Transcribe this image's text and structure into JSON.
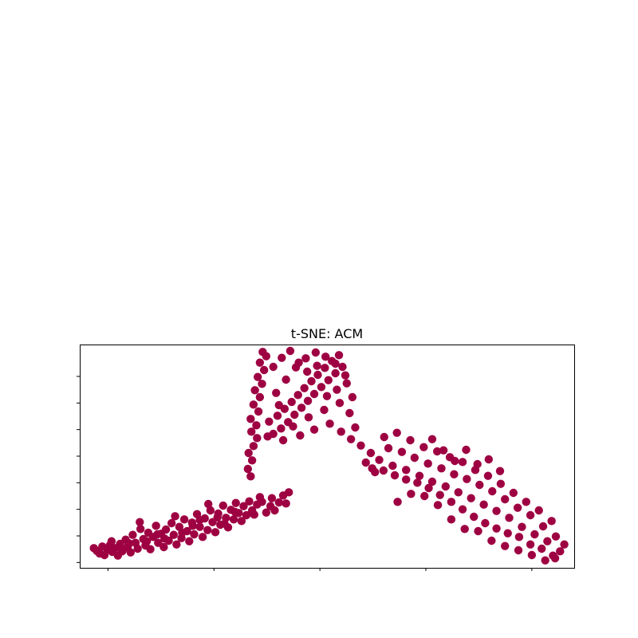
{
  "chart_data": {
    "type": "scatter",
    "title": "t-SNE: ACM",
    "xlabel": "",
    "ylabel": "",
    "xlim": [
      -34,
      36
    ],
    "ylim": [
      -26,
      16
    ],
    "x_ticks": [
      -30,
      -15,
      0,
      15,
      30
    ],
    "y_ticks": [
      -25,
      -20,
      -15,
      -10,
      -5,
      0,
      5,
      10
    ],
    "tick_labels_visible": false,
    "grid": false,
    "marker_color": "#9e0142",
    "series": [
      {
        "values": [
          [
            -32.0,
            -22.3
          ],
          [
            -31.6,
            -22.8
          ],
          [
            -31.2,
            -23.3
          ],
          [
            -30.8,
            -22.0
          ],
          [
            -30.5,
            -23.6
          ],
          [
            -30.1,
            -22.6
          ],
          [
            -29.7,
            -21.7
          ],
          [
            -29.4,
            -23.0
          ],
          [
            -29.0,
            -22.3
          ],
          [
            -28.6,
            -23.7
          ],
          [
            -28.3,
            -21.5
          ],
          [
            -27.9,
            -22.6
          ],
          [
            -27.5,
            -20.7
          ],
          [
            -27.2,
            -22.0
          ],
          [
            -26.8,
            -23.1
          ],
          [
            -26.5,
            -19.8
          ],
          [
            -26.1,
            -21.3
          ],
          [
            -25.8,
            -22.4
          ],
          [
            -25.4,
            -18.7
          ],
          [
            -25.0,
            -20.6
          ],
          [
            -24.7,
            -21.8
          ],
          [
            -24.3,
            -19.4
          ],
          [
            -24.0,
            -22.5
          ],
          [
            -23.6,
            -20.2
          ],
          [
            -23.2,
            -18.1
          ],
          [
            -22.9,
            -21.3
          ],
          [
            -22.5,
            -19.6
          ],
          [
            -22.1,
            -22.1
          ],
          [
            -21.8,
            -18.8
          ],
          [
            -21.4,
            -20.9
          ],
          [
            -21.0,
            -17.6
          ],
          [
            -20.7,
            -19.8
          ],
          [
            -20.3,
            -21.6
          ],
          [
            -19.9,
            -18.3
          ],
          [
            -19.6,
            -20.4
          ],
          [
            -19.2,
            -16.9
          ],
          [
            -18.8,
            -19.1
          ],
          [
            -18.5,
            -21.0
          ],
          [
            -18.1,
            -17.5
          ],
          [
            -17.8,
            -19.7
          ],
          [
            -17.4,
            -15.9
          ],
          [
            -17.0,
            -18.3
          ],
          [
            -16.6,
            -20.2
          ],
          [
            -16.3,
            -16.7
          ],
          [
            -15.9,
            -18.9
          ],
          [
            -15.5,
            -15.2
          ],
          [
            -15.2,
            -17.4
          ],
          [
            -14.8,
            -19.3
          ],
          [
            -14.4,
            -15.8
          ],
          [
            -14.1,
            -17.9
          ],
          [
            -13.7,
            -14.3
          ],
          [
            -13.3,
            -16.6
          ],
          [
            -13.0,
            -18.4
          ],
          [
            -12.6,
            -15.1
          ],
          [
            -12.2,
            -16.9
          ],
          [
            -11.9,
            -13.8
          ],
          [
            -11.5,
            -15.7
          ],
          [
            -11.1,
            -17.2
          ],
          [
            -10.8,
            -14.4
          ],
          [
            -10.4,
            -16.1
          ],
          [
            -10.0,
            -13.5
          ],
          [
            -9.6,
            -15.2
          ],
          [
            -9.3,
            -16.0
          ],
          [
            -8.9,
            -14.1
          ],
          [
            -8.5,
            -12.7
          ],
          [
            -29.5,
            -21.0
          ],
          [
            -27.0,
            -21.4
          ],
          [
            -24.5,
            -21.0
          ],
          [
            -22.0,
            -20.5
          ],
          [
            -19.5,
            -19.4
          ],
          [
            -17.0,
            -17.0
          ],
          [
            -14.5,
            -16.5
          ],
          [
            -12.0,
            -15.5
          ],
          [
            -28.0,
            -22.9
          ],
          [
            -23.0,
            -19.7
          ],
          [
            -18.0,
            -18.1
          ],
          [
            -13.5,
            -17.7
          ],
          [
            -25.5,
            -17.4
          ],
          [
            -20.5,
            -16.3
          ],
          [
            -15.8,
            -14.0
          ],
          [
            -8.2,
            -13.6
          ],
          [
            -7.6,
            -15.6
          ],
          [
            -7.0,
            -14.4
          ],
          [
            -6.4,
            -15.2
          ],
          [
            -5.8,
            -13.7
          ],
          [
            -5.2,
            -12.4
          ],
          [
            -4.8,
            -13.9
          ],
          [
            -4.4,
            -11.8
          ],
          [
            -6.8,
            -12.9
          ],
          [
            -9.8,
            -8.8
          ],
          [
            -10.2,
            -7.4
          ],
          [
            -9.6,
            -5.8
          ],
          [
            -10.1,
            -4.4
          ],
          [
            -9.4,
            -3.1
          ],
          [
            -8.9,
            -1.6
          ],
          [
            -9.7,
            -0.4
          ],
          [
            -9.0,
            0.8
          ],
          [
            -9.8,
            2.0
          ],
          [
            -8.7,
            3.4
          ],
          [
            -9.4,
            4.7
          ],
          [
            -8.5,
            6.1
          ],
          [
            -9.2,
            7.4
          ],
          [
            -8.2,
            8.6
          ],
          [
            -8.8,
            9.9
          ],
          [
            -7.9,
            11.2
          ],
          [
            -8.5,
            12.6
          ],
          [
            -7.6,
            13.8
          ],
          [
            -8.1,
            14.6
          ],
          [
            -7.2,
            1.5
          ],
          [
            -6.6,
            -0.8
          ],
          [
            -6.0,
            2.6
          ],
          [
            -5.5,
            0.2
          ],
          [
            -5.0,
            3.9
          ],
          [
            -4.5,
            1.4
          ],
          [
            -4.0,
            5.2
          ],
          [
            -3.6,
            2.8
          ],
          [
            -3.1,
            6.5
          ],
          [
            -2.6,
            4.1
          ],
          [
            -2.2,
            7.8
          ],
          [
            -1.7,
            5.4
          ],
          [
            -1.2,
            9.1
          ],
          [
            -0.8,
            6.7
          ],
          [
            -0.3,
            10.3
          ],
          [
            0.2,
            8.0
          ],
          [
            0.7,
            11.6
          ],
          [
            1.2,
            9.3
          ],
          [
            1.7,
            12.9
          ],
          [
            2.2,
            10.6
          ],
          [
            2.7,
            14.0
          ],
          [
            3.2,
            11.8
          ],
          [
            -6.2,
            6.9
          ],
          [
            -4.8,
            9.4
          ],
          [
            -3.4,
            11.7
          ],
          [
            -2.0,
            13.4
          ],
          [
            -0.6,
            14.5
          ],
          [
            0.8,
            13.7
          ],
          [
            2.2,
            12.4
          ],
          [
            3.6,
            10.2
          ],
          [
            -6.6,
            11.8
          ],
          [
            -5.4,
            13.5
          ],
          [
            -4.2,
            14.8
          ],
          [
            -3.0,
            12.6
          ],
          [
            -1.8,
            10.9
          ],
          [
            -0.4,
            12.0
          ],
          [
            1.0,
            6.3
          ],
          [
            2.4,
            7.5
          ],
          [
            3.8,
            8.7
          ],
          [
            4.6,
            6.1
          ],
          [
            -5.8,
            4.6
          ],
          [
            -3.8,
            0.6
          ],
          [
            -1.6,
            2.3
          ],
          [
            0.6,
            3.7
          ],
          [
            2.8,
            5.0
          ],
          [
            4.2,
            3.1
          ],
          [
            5.0,
            0.4
          ],
          [
            4.4,
            -1.8
          ],
          [
            3.0,
            -0.4
          ],
          [
            1.4,
            1.1
          ],
          [
            -0.8,
            0.0
          ],
          [
            -2.8,
            -1.1
          ],
          [
            -5.2,
            -2.0
          ],
          [
            -7.4,
            -1.3
          ],
          [
            5.8,
            -3.0
          ],
          [
            6.5,
            -6.2
          ],
          [
            7.2,
            -4.4
          ],
          [
            7.8,
            -8.0
          ],
          [
            8.4,
            -5.7
          ],
          [
            9.1,
            -1.4
          ],
          [
            9.7,
            -3.5
          ],
          [
            10.3,
            -6.8
          ],
          [
            10.9,
            -0.6
          ],
          [
            11.6,
            -4.2
          ],
          [
            12.2,
            -7.6
          ],
          [
            12.8,
            -2.0
          ],
          [
            13.4,
            -5.3
          ],
          [
            14.1,
            -8.7
          ],
          [
            14.7,
            -3.3
          ],
          [
            15.3,
            -6.4
          ],
          [
            15.9,
            -9.8
          ],
          [
            16.6,
            -4.1
          ],
          [
            17.2,
            -7.3
          ],
          [
            17.8,
            -10.7
          ],
          [
            18.4,
            -5.2
          ],
          [
            19.0,
            -8.4
          ],
          [
            19.6,
            -11.8
          ],
          [
            20.2,
            -6.1
          ],
          [
            20.8,
            -9.3
          ],
          [
            21.4,
            -12.9
          ],
          [
            22.0,
            -7.6
          ],
          [
            22.6,
            -10.4
          ],
          [
            23.2,
            -14.1
          ],
          [
            23.8,
            -8.7
          ],
          [
            24.4,
            -11.6
          ],
          [
            25.0,
            -15.3
          ],
          [
            25.6,
            -10.2
          ],
          [
            26.2,
            -13.1
          ],
          [
            26.8,
            -16.6
          ],
          [
            27.4,
            -11.9
          ],
          [
            28.0,
            -14.7
          ],
          [
            28.6,
            -18.3
          ],
          [
            29.2,
            -13.6
          ],
          [
            29.8,
            -16.1
          ],
          [
            30.4,
            -19.7
          ],
          [
            31.0,
            -15.2
          ],
          [
            31.6,
            -18.2
          ],
          [
            32.2,
            -21.0
          ],
          [
            32.8,
            -17.2
          ],
          [
            33.4,
            -20.1
          ],
          [
            34.0,
            -22.9
          ],
          [
            34.6,
            -21.6
          ],
          [
            33.0,
            -23.7
          ],
          [
            31.4,
            -22.4
          ],
          [
            29.8,
            -21.6
          ],
          [
            28.2,
            -20.2
          ],
          [
            26.6,
            -19.5
          ],
          [
            25.0,
            -18.6
          ],
          [
            23.4,
            -17.6
          ],
          [
            21.8,
            -16.4
          ],
          [
            20.2,
            -15.0
          ],
          [
            18.6,
            -13.6
          ],
          [
            17.0,
            -12.3
          ],
          [
            15.4,
            -11.0
          ],
          [
            13.8,
            -10.0
          ],
          [
            12.2,
            -9.4
          ],
          [
            10.6,
            -8.6
          ],
          [
            9.0,
            -7.7
          ],
          [
            7.4,
            -7.3
          ],
          [
            11.0,
            -13.6
          ],
          [
            12.9,
            -12.1
          ],
          [
            14.8,
            -12.5
          ],
          [
            16.7,
            -14.2
          ],
          [
            18.6,
            -16.9
          ],
          [
            20.5,
            -18.7
          ],
          [
            22.4,
            -19.1
          ],
          [
            24.3,
            -20.9
          ],
          [
            26.2,
            -21.9
          ],
          [
            28.1,
            -22.7
          ],
          [
            30.0,
            -23.6
          ],
          [
            31.9,
            -24.6
          ],
          [
            33.3,
            -24.2
          ],
          [
            15.9,
            -1.8
          ],
          [
            17.5,
            -3.9
          ],
          [
            19.1,
            -5.9
          ],
          [
            20.7,
            -3.8
          ],
          [
            22.3,
            -6.5
          ],
          [
            23.9,
            -5.6
          ],
          [
            25.5,
            -7.8
          ]
        ]
      }
    ]
  }
}
